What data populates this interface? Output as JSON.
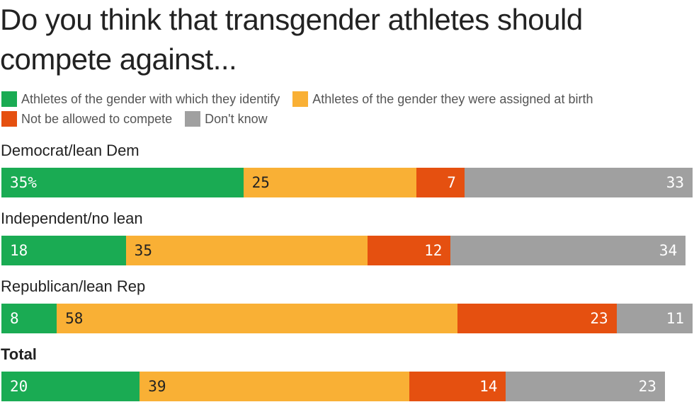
{
  "title": "Do you think that transgender athletes should compete against...",
  "legend": [
    {
      "label": "Athletes of the gender with which they identify",
      "color": "#1aab53"
    },
    {
      "label": "Athletes of the gender they were assigned at birth",
      "color": "#f9b035"
    },
    {
      "label": "Not be allowed to compete",
      "color": "#e55010"
    },
    {
      "label": "Don't know",
      "color": "#a0a0a0"
    }
  ],
  "chart_data": {
    "type": "bar",
    "orientation": "horizontal",
    "stacked": true,
    "title": "Do you think that transgender athletes should compete against...",
    "categories": [
      "Democrat/lean Dem",
      "Independent/no lean",
      "Republican/lean Rep",
      "Total"
    ],
    "series": [
      {
        "name": "Athletes of the gender with which they identify",
        "color": "#1aab53",
        "values": [
          35,
          18,
          8,
          20
        ],
        "labels": [
          "35%",
          "18",
          "8",
          "20"
        ]
      },
      {
        "name": "Athletes of the gender they were assigned at birth",
        "color": "#f9b035",
        "values": [
          25,
          35,
          58,
          39
        ],
        "labels": [
          "25",
          "35",
          "58",
          "39"
        ]
      },
      {
        "name": "Not be allowed to compete",
        "color": "#e55010",
        "values": [
          7,
          12,
          23,
          14
        ],
        "labels": [
          "7",
          "12",
          "23",
          "14"
        ]
      },
      {
        "name": "Don't know",
        "color": "#a0a0a0",
        "values": [
          33,
          34,
          11,
          23
        ],
        "labels": [
          "33",
          "34",
          "11",
          "23"
        ]
      }
    ],
    "xlim": [
      0,
      100
    ],
    "grid": false,
    "legend_position": "top-left"
  }
}
